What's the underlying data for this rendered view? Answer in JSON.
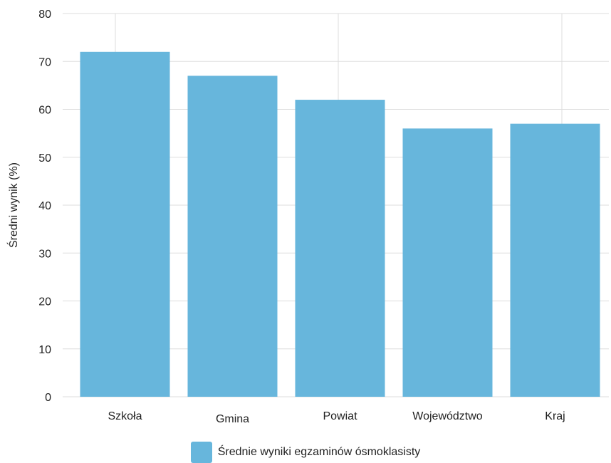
{
  "chart_data": {
    "type": "bar",
    "title": "",
    "xlabel": "",
    "ylabel": "Średni wynik (%)",
    "categories": [
      "Szkoła",
      "Gmina",
      "Powiat",
      "Województwo",
      "Kraj"
    ],
    "series": [
      {
        "name": "Średnie wyniki egzaminów ósmoklasisty",
        "values": [
          72,
          67,
          62,
          56,
          57
        ]
      }
    ],
    "yticks": [
      0,
      10,
      20,
      30,
      40,
      50,
      60,
      70,
      80
    ],
    "ylim": [
      0,
      80
    ],
    "grid": true,
    "legend_position": "bottom-center",
    "bar_color": "#67B6DC",
    "grid_color": "#DDDDDD"
  }
}
